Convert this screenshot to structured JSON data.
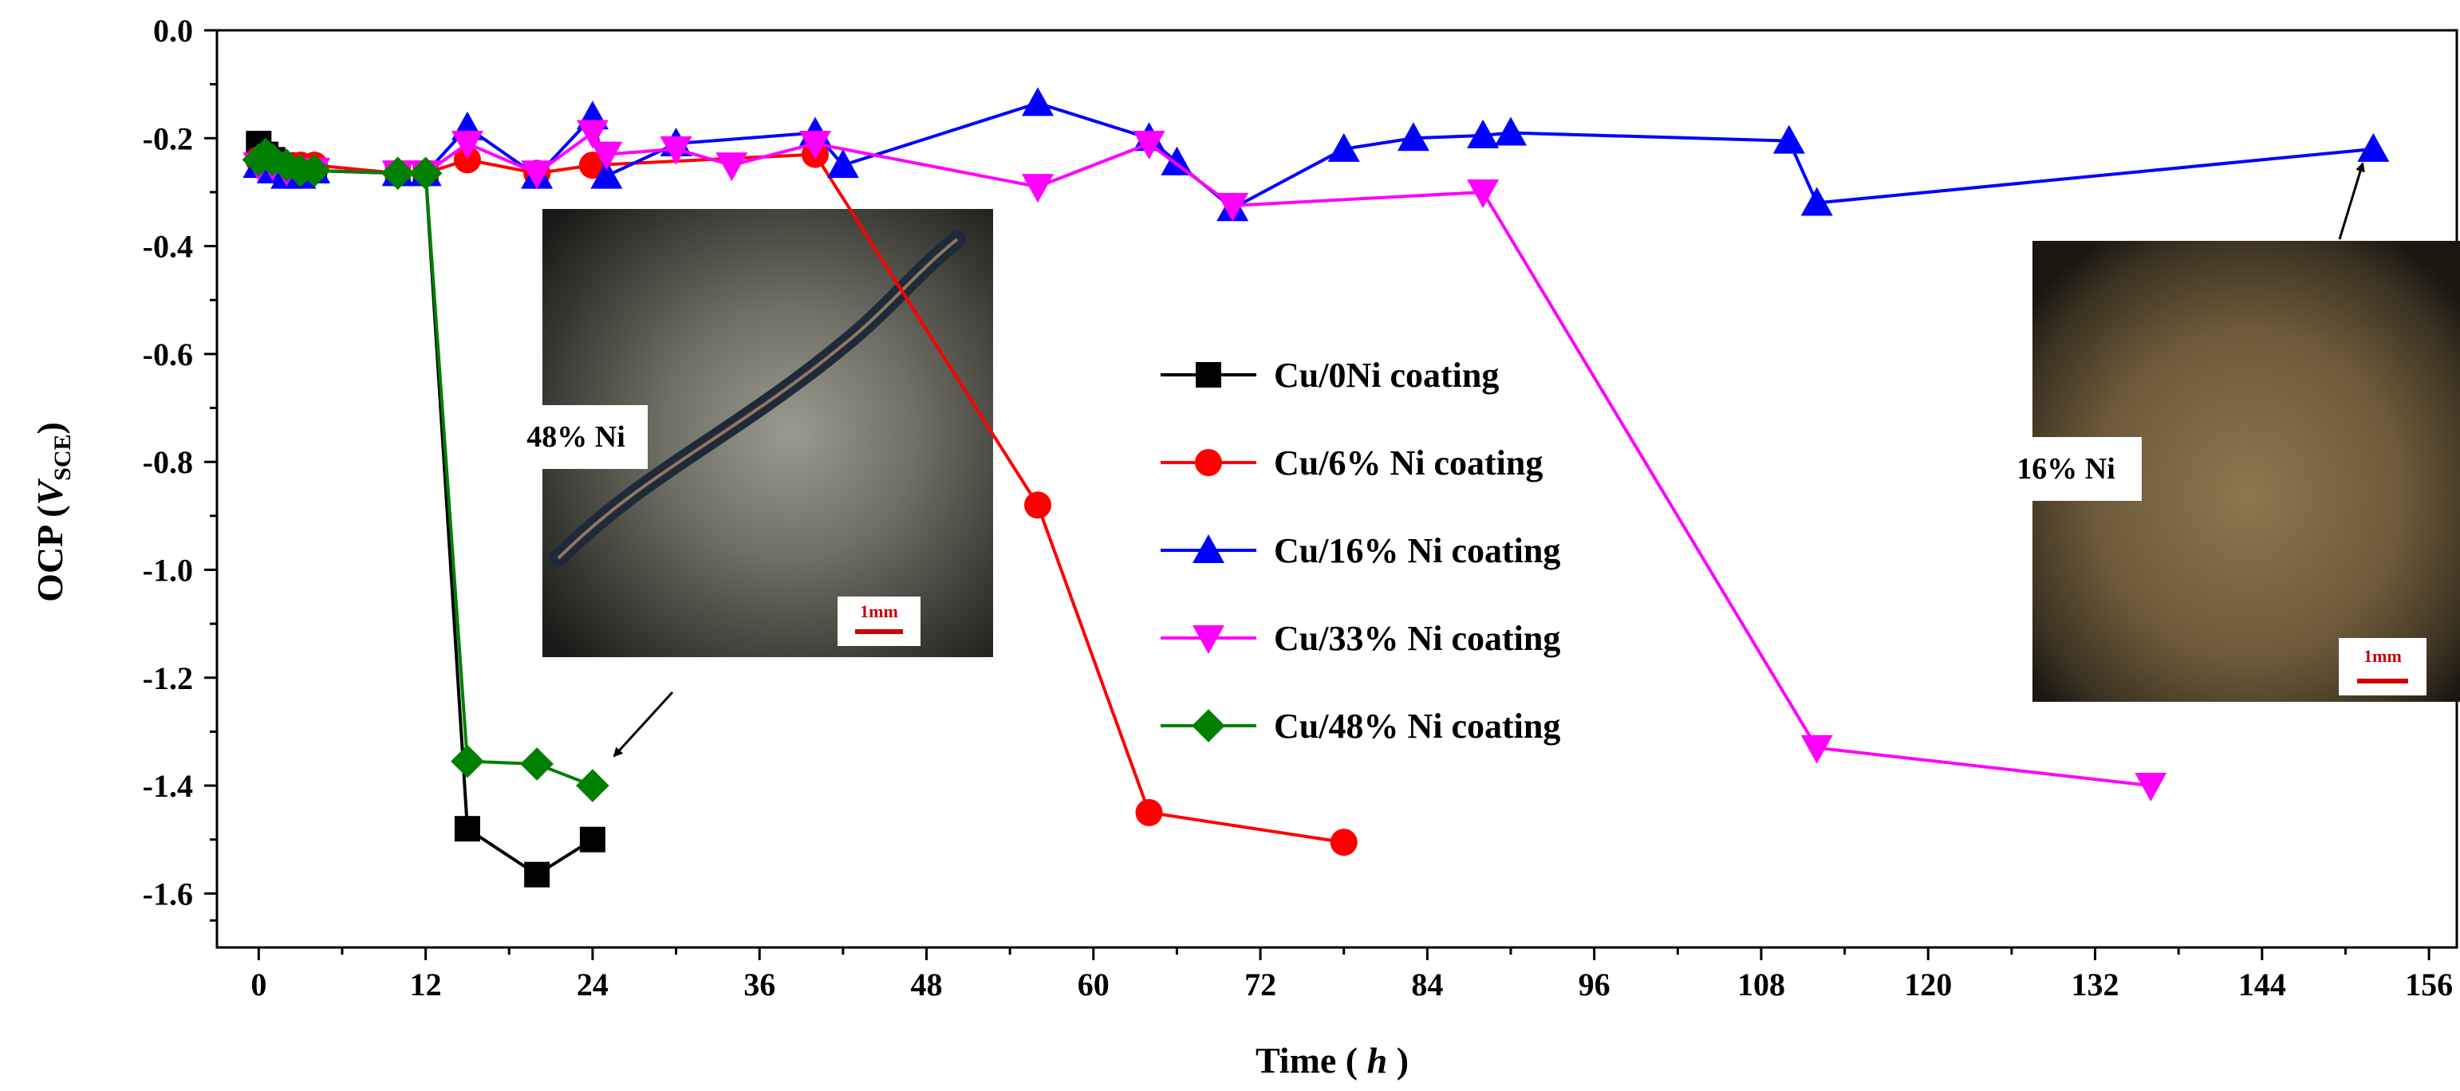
{
  "chart_data": {
    "type": "line",
    "xlabel": "Time ( h )",
    "xlabel_main": "Time ( ",
    "xlabel_var": "h",
    "xlabel_end": " )",
    "ylabel_main": "OCP (",
    "ylabel_var": "V",
    "ylabel_sub": "SCE",
    "ylabel_end": ")",
    "xlim": [
      -3,
      158
    ],
    "ylim": [
      -1.7,
      0.0
    ],
    "xticks": [
      0,
      12,
      24,
      36,
      48,
      60,
      72,
      84,
      96,
      108,
      120,
      132,
      144,
      156
    ],
    "xtick_labels": [
      "0",
      "12",
      "24",
      "36",
      "48",
      "60",
      "72",
      "84",
      "96",
      "108",
      "120",
      "132",
      "144",
      "156"
    ],
    "yticks": [
      0.0,
      -0.2,
      -0.4,
      -0.6,
      -0.8,
      -1.0,
      -1.2,
      -1.4,
      -1.6
    ],
    "ytick_labels": [
      "0.0",
      "-0.2",
      "-0.4",
      "-0.6",
      "-0.8",
      "-1.0",
      "-1.2",
      "-1.4",
      "-1.6"
    ],
    "legend_position": "center",
    "series": [
      {
        "name": "Cu/0Ni coating",
        "color": "#000000",
        "marker": "square",
        "x": [
          0,
          0.5,
          1,
          2,
          3,
          4,
          10,
          12,
          15,
          20,
          24
        ],
        "y": [
          -0.21,
          -0.23,
          -0.24,
          -0.25,
          -0.26,
          -0.26,
          -0.265,
          -0.265,
          -1.48,
          -1.565,
          -1.5
        ]
      },
      {
        "name": "Cu/6% Ni coating",
        "color": "#ff0000",
        "marker": "circle",
        "x": [
          0,
          1,
          2,
          3,
          4,
          10,
          12,
          15,
          20,
          24,
          40,
          56,
          64,
          78
        ],
        "y": [
          -0.24,
          -0.25,
          -0.25,
          -0.25,
          -0.25,
          -0.265,
          -0.265,
          -0.24,
          -0.265,
          -0.25,
          -0.23,
          -0.88,
          -1.45,
          -1.505
        ]
      },
      {
        "name": "Cu/16% Ni coating",
        "color": "#0000ff",
        "marker": "triangle-up",
        "x": [
          0,
          1,
          2,
          3,
          4,
          10,
          12,
          15,
          20,
          24,
          25,
          30,
          40,
          42,
          56,
          64,
          66,
          70,
          78,
          83,
          88,
          90,
          110,
          112,
          152
        ],
        "y": [
          -0.25,
          -0.26,
          -0.27,
          -0.27,
          -0.26,
          -0.265,
          -0.265,
          -0.18,
          -0.27,
          -0.16,
          -0.27,
          -0.21,
          -0.19,
          -0.25,
          -0.135,
          -0.2,
          -0.245,
          -0.33,
          -0.22,
          -0.2,
          -0.195,
          -0.19,
          -0.205,
          -0.32,
          -0.22
        ]
      },
      {
        "name": "Cu/33% Ni coating",
        "color": "#ff00ff",
        "marker": "triangle-down",
        "x": [
          0,
          1,
          2,
          3,
          4,
          10,
          12,
          15,
          20,
          24,
          25,
          30,
          34,
          40,
          56,
          64,
          70,
          88,
          112,
          136
        ],
        "y": [
          -0.25,
          -0.25,
          -0.26,
          -0.26,
          -0.26,
          -0.265,
          -0.265,
          -0.21,
          -0.265,
          -0.19,
          -0.23,
          -0.22,
          -0.25,
          -0.21,
          -0.29,
          -0.21,
          -0.325,
          -0.3,
          -1.33,
          -1.4
        ]
      },
      {
        "name": "Cu/48% Ni coating",
        "color": "#008000",
        "marker": "diamond",
        "x": [
          0,
          0.5,
          1,
          2,
          3,
          4,
          10,
          12,
          15,
          20,
          24
        ],
        "y": [
          -0.24,
          -0.23,
          -0.24,
          -0.25,
          -0.26,
          -0.26,
          -0.265,
          -0.265,
          -1.355,
          -1.36,
          -1.4
        ]
      }
    ],
    "insets": [
      {
        "label": "48% Ni",
        "scale_label": "1mm",
        "arrow_target": [
          24,
          -1.4
        ]
      },
      {
        "label": "16% Ni",
        "scale_label": "1mm",
        "arrow_target": [
          152,
          -0.22
        ]
      }
    ]
  }
}
